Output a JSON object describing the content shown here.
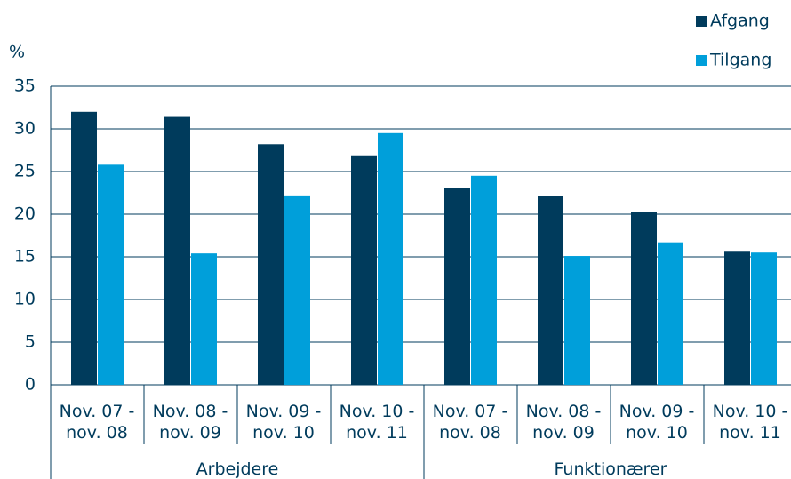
{
  "chart_data": {
    "type": "bar",
    "y_label": "%",
    "categories": [
      "Nov. 07 - nov. 08",
      "Nov. 08 - nov. 09",
      "Nov. 09 - nov. 10",
      "Nov. 10 - nov. 11",
      "Nov. 07 - nov. 08",
      "Nov. 08 - nov. 09",
      "Nov. 09 - nov. 10",
      "Nov. 10 - nov. 11"
    ],
    "groups": [
      "Arbejdere",
      "Funktionærer"
    ],
    "series": [
      {
        "name": "Afgang",
        "color": "#003b5c",
        "values": [
          32.0,
          31.4,
          28.2,
          26.9,
          23.1,
          22.1,
          20.3,
          15.6
        ]
      },
      {
        "name": "Tilgang",
        "color": "#009fda",
        "values": [
          25.8,
          15.4,
          22.2,
          29.5,
          24.5,
          15.1,
          16.7,
          15.5
        ]
      }
    ],
    "ylim": [
      0,
      35
    ],
    "yticks": [
      0,
      5,
      10,
      15,
      20,
      25,
      30,
      35
    ],
    "grid": true,
    "legend": "top-right"
  }
}
